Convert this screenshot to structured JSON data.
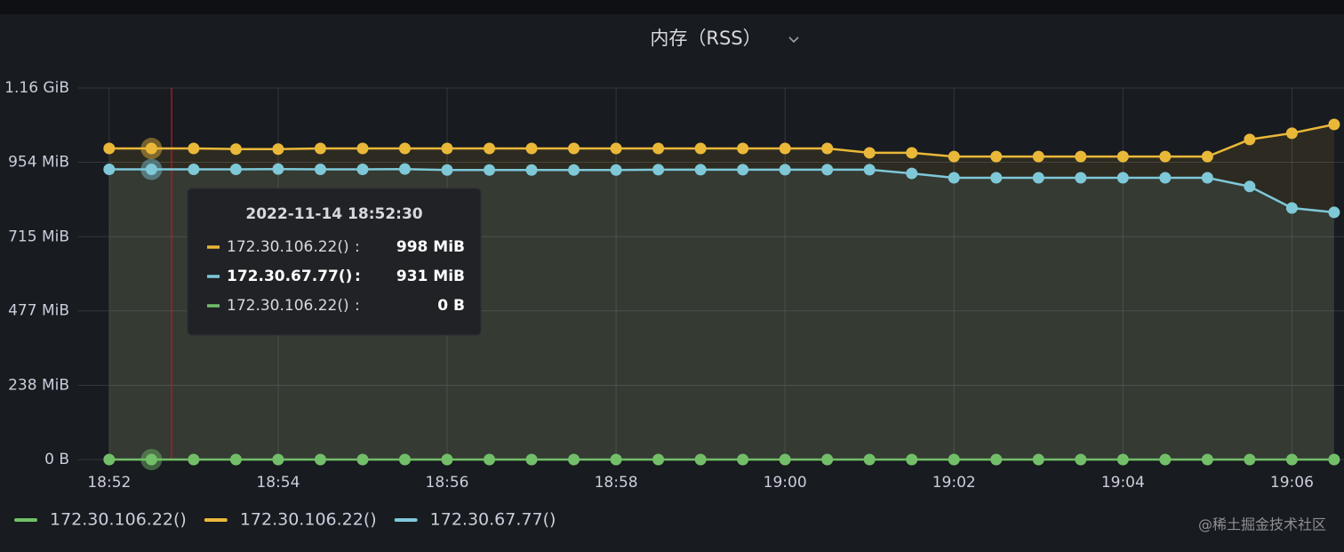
{
  "chart_data": {
    "type": "line",
    "title": "内存（RSS）",
    "x": [
      "18:52:00",
      "18:52:30",
      "18:53:00",
      "18:53:30",
      "18:54:00",
      "18:54:30",
      "18:55:00",
      "18:55:30",
      "18:56:00",
      "18:56:30",
      "18:57:00",
      "18:57:30",
      "18:58:00",
      "18:58:30",
      "18:59:00",
      "18:59:30",
      "19:00:00",
      "19:00:30",
      "19:01:00",
      "19:01:30",
      "19:02:00",
      "19:02:30",
      "19:03:00",
      "19:03:30",
      "19:04:00",
      "19:04:30",
      "19:05:00",
      "19:05:30",
      "19:06:00",
      "19:06:30"
    ],
    "series": [
      {
        "name": "172.30.106.22()",
        "color": "#73bf69",
        "values": [
          0,
          0,
          0,
          0,
          0,
          0,
          0,
          0,
          0,
          0,
          0,
          0,
          0,
          0,
          0,
          0,
          0,
          0,
          0,
          0,
          0,
          0,
          0,
          0,
          0,
          0,
          0,
          0,
          0,
          0
        ]
      },
      {
        "name": "172.30.106.22()",
        "color": "#eab839",
        "values": [
          998,
          998,
          998,
          996,
          996,
          998,
          998,
          998,
          998,
          998,
          998,
          998,
          998,
          998,
          998,
          998,
          998,
          998,
          984,
          984,
          972,
          972,
          972,
          972,
          972,
          972,
          972,
          1027,
          1047,
          1075
        ]
      },
      {
        "name": "172.30.67.77()",
        "color": "#7ec8d8",
        "values": [
          931,
          931,
          931,
          931,
          932,
          931,
          931,
          932,
          929,
          929,
          929,
          929,
          929,
          930,
          930,
          930,
          930,
          930,
          930,
          918,
          904,
          904,
          904,
          904,
          904,
          904,
          904,
          876,
          807,
          793
        ]
      }
    ],
    "xlim": [
      "18:51:38",
      "19:06:37"
    ],
    "xticks": [
      "18:52",
      "18:54",
      "18:56",
      "18:58",
      "19:00",
      "19:02",
      "19:04",
      "19:06"
    ],
    "ylim": [
      0,
      1192
    ],
    "yticks": [
      {
        "value": 0,
        "label": "0 B"
      },
      {
        "value": 238,
        "label": "238 MiB"
      },
      {
        "value": 477,
        "label": "477 MiB"
      },
      {
        "value": 715,
        "label": "715 MiB"
      },
      {
        "value": 954,
        "label": "954 MiB"
      },
      {
        "value": 1192,
        "label": "1.16 GiB"
      }
    ],
    "grid": true,
    "legend": "bottom-left",
    "tooltip": {
      "title": "2022-11-14 18:52:30",
      "labels": [
        "998 MiB",
        "931 MiB",
        "0 B"
      ]
    },
    "watermark": "@稀土掘金技术社区"
  }
}
